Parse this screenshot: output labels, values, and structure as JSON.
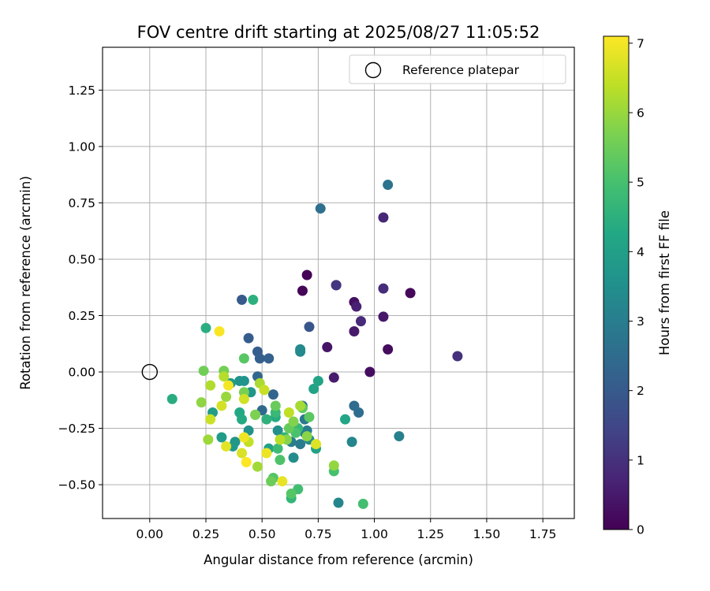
{
  "chart_data": {
    "type": "scatter",
    "title": "FOV centre drift starting at 2025/08/27 11:05:52",
    "xlabel": "Angular distance from reference (arcmin)",
    "ylabel": "Rotation from reference (arcmin)",
    "xlim": [
      -0.21,
      1.89
    ],
    "ylim": [
      -0.65,
      1.44
    ],
    "x_ticks": [
      "0.00",
      "0.25",
      "0.50",
      "0.75",
      "1.00",
      "1.25",
      "1.50",
      "1.75"
    ],
    "x_tick_values": [
      0,
      0.25,
      0.5,
      0.75,
      1.0,
      1.25,
      1.5,
      1.75
    ],
    "y_ticks": [
      "−0.50",
      "−0.25",
      "0.00",
      "0.25",
      "0.50",
      "0.75",
      "1.00",
      "1.25"
    ],
    "y_tick_values": [
      -0.5,
      -0.25,
      0,
      0.25,
      0.5,
      0.75,
      1.0,
      1.25
    ],
    "grid": true,
    "legend": {
      "position": "top-right",
      "entries": [
        "Reference platepar"
      ]
    },
    "reference_point": {
      "x": 0,
      "y": 0,
      "label": "Reference platepar"
    },
    "colorbar": {
      "label": "Hours from first FF file",
      "range": [
        0,
        7.1
      ],
      "ticks": [
        "0",
        "1",
        "2",
        "3",
        "4",
        "5",
        "6",
        "7"
      ],
      "tick_values": [
        0,
        1,
        2,
        3,
        4,
        5,
        6,
        7
      ],
      "colormap": "viridis"
    },
    "points": [
      {
        "x": 0.7,
        "y": 0.43,
        "h": 0.05
      },
      {
        "x": 0.68,
        "y": 0.36,
        "h": 0.1
      },
      {
        "x": 1.16,
        "y": 0.35,
        "h": 0.15
      },
      {
        "x": 1.06,
        "y": 0.1,
        "h": 0.2
      },
      {
        "x": 0.98,
        "y": 0.0,
        "h": 0.25
      },
      {
        "x": 0.91,
        "y": 0.31,
        "h": 0.3
      },
      {
        "x": 0.79,
        "y": 0.11,
        "h": 0.4
      },
      {
        "x": 1.04,
        "y": 0.245,
        "h": 0.45
      },
      {
        "x": 0.91,
        "y": 0.18,
        "h": 0.5
      },
      {
        "x": 0.82,
        "y": -0.025,
        "h": 0.55
      },
      {
        "x": 0.92,
        "y": 0.29,
        "h": 0.65
      },
      {
        "x": 0.83,
        "y": 0.385,
        "h": 0.75
      },
      {
        "x": 1.04,
        "y": 0.685,
        "h": 0.8
      },
      {
        "x": 0.94,
        "y": 0.225,
        "h": 0.85
      },
      {
        "x": 1.04,
        "y": 0.37,
        "h": 0.9
      },
      {
        "x": 1.37,
        "y": 0.07,
        "h": 1.0
      },
      {
        "x": 0.83,
        "y": 0.385,
        "h": 1.1
      },
      {
        "x": 0.71,
        "y": 0.2,
        "h": 1.9
      },
      {
        "x": 0.41,
        "y": 0.32,
        "h": 2.0
      },
      {
        "x": 0.44,
        "y": 0.15,
        "h": 2.05
      },
      {
        "x": 0.48,
        "y": 0.09,
        "h": 2.1
      },
      {
        "x": 0.49,
        "y": 0.06,
        "h": 2.15
      },
      {
        "x": 0.53,
        "y": 0.06,
        "h": 2.2
      },
      {
        "x": 0.55,
        "y": -0.1,
        "h": 2.3
      },
      {
        "x": 0.48,
        "y": -0.02,
        "h": 2.35
      },
      {
        "x": 0.5,
        "y": -0.17,
        "h": 2.4
      },
      {
        "x": 0.91,
        "y": -0.15,
        "h": 2.5
      },
      {
        "x": 0.93,
        "y": -0.18,
        "h": 2.55
      },
      {
        "x": 0.76,
        "y": 0.725,
        "h": 2.6
      },
      {
        "x": 1.06,
        "y": 0.83,
        "h": 2.7
      },
      {
        "x": 0.68,
        "y": -0.15,
        "h": 2.8
      },
      {
        "x": 0.69,
        "y": -0.21,
        "h": 2.85
      },
      {
        "x": 0.69,
        "y": -0.27,
        "h": 2.9
      },
      {
        "x": 0.67,
        "y": -0.32,
        "h": 2.95
      },
      {
        "x": 0.63,
        "y": -0.31,
        "h": 3.0
      },
      {
        "x": 0.7,
        "y": -0.26,
        "h": 3.05
      },
      {
        "x": 1.11,
        "y": -0.285,
        "h": 3.1
      },
      {
        "x": 0.84,
        "y": -0.58,
        "h": 3.2
      },
      {
        "x": 0.9,
        "y": -0.31,
        "h": 3.25
      },
      {
        "x": 0.67,
        "y": 0.09,
        "h": 3.3
      },
      {
        "x": 0.67,
        "y": 0.1,
        "h": 3.35
      },
      {
        "x": 0.71,
        "y": -0.3,
        "h": 3.4
      },
      {
        "x": 0.64,
        "y": -0.38,
        "h": 3.45
      },
      {
        "x": 0.57,
        "y": -0.26,
        "h": 3.5
      },
      {
        "x": 0.44,
        "y": -0.26,
        "h": 3.55
      },
      {
        "x": 0.4,
        "y": -0.04,
        "h": 3.6
      },
      {
        "x": 0.42,
        "y": -0.04,
        "h": 3.65
      },
      {
        "x": 0.45,
        "y": -0.09,
        "h": 3.7
      },
      {
        "x": 0.38,
        "y": -0.31,
        "h": 3.75
      },
      {
        "x": 0.37,
        "y": -0.33,
        "h": 3.8
      },
      {
        "x": 0.36,
        "y": -0.05,
        "h": 3.85
      },
      {
        "x": 0.32,
        "y": -0.29,
        "h": 3.9
      },
      {
        "x": 0.28,
        "y": -0.18,
        "h": 3.95
      },
      {
        "x": 0.53,
        "y": -0.34,
        "h": 4.0
      },
      {
        "x": 0.74,
        "y": -0.34,
        "h": 4.05
      },
      {
        "x": 0.73,
        "y": -0.075,
        "h": 4.1
      },
      {
        "x": 0.75,
        "y": -0.04,
        "h": 4.15
      },
      {
        "x": 0.87,
        "y": -0.21,
        "h": 4.2
      },
      {
        "x": 0.4,
        "y": -0.18,
        "h": 4.25
      },
      {
        "x": 0.41,
        "y": -0.21,
        "h": 4.3
      },
      {
        "x": 0.56,
        "y": -0.2,
        "h": 4.35
      },
      {
        "x": 0.1,
        "y": -0.12,
        "h": 4.4
      },
      {
        "x": 0.25,
        "y": 0.195,
        "h": 4.45
      },
      {
        "x": 0.46,
        "y": 0.32,
        "h": 4.5
      },
      {
        "x": 0.52,
        "y": -0.21,
        "h": 4.55
      },
      {
        "x": 0.6,
        "y": -0.29,
        "h": 4.6
      },
      {
        "x": 0.63,
        "y": -0.56,
        "h": 4.65
      },
      {
        "x": 0.66,
        "y": -0.25,
        "h": 4.7
      },
      {
        "x": 0.56,
        "y": -0.18,
        "h": 4.75
      },
      {
        "x": 0.47,
        "y": -0.19,
        "h": 4.8
      },
      {
        "x": 0.57,
        "y": -0.34,
        "h": 4.85
      },
      {
        "x": 0.66,
        "y": -0.52,
        "h": 4.9
      },
      {
        "x": 0.95,
        "y": -0.585,
        "h": 4.95
      },
      {
        "x": 0.82,
        "y": -0.44,
        "h": 5.0
      },
      {
        "x": 0.65,
        "y": -0.27,
        "h": 5.05
      },
      {
        "x": 0.58,
        "y": -0.39,
        "h": 5.1
      },
      {
        "x": 0.55,
        "y": -0.47,
        "h": 5.15
      },
      {
        "x": 0.63,
        "y": -0.54,
        "h": 5.2
      },
      {
        "x": 0.42,
        "y": 0.06,
        "h": 5.25
      },
      {
        "x": 0.71,
        "y": -0.2,
        "h": 5.3
      },
      {
        "x": 0.68,
        "y": -0.16,
        "h": 5.35
      },
      {
        "x": 0.62,
        "y": -0.25,
        "h": 5.4
      },
      {
        "x": 0.56,
        "y": -0.15,
        "h": 5.45
      },
      {
        "x": 0.54,
        "y": -0.485,
        "h": 5.5
      },
      {
        "x": 0.24,
        "y": 0.005,
        "h": 5.55
      },
      {
        "x": 0.33,
        "y": 0.005,
        "h": 5.6
      },
      {
        "x": 0.42,
        "y": -0.09,
        "h": 5.65
      },
      {
        "x": 0.47,
        "y": -0.19,
        "h": 5.7
      },
      {
        "x": 0.64,
        "y": -0.22,
        "h": 5.75
      },
      {
        "x": 0.61,
        "y": -0.3,
        "h": 5.8
      },
      {
        "x": 0.7,
        "y": -0.285,
        "h": 5.85
      },
      {
        "x": 0.23,
        "y": -0.135,
        "h": 5.9
      },
      {
        "x": 0.82,
        "y": -0.415,
        "h": 5.95
      },
      {
        "x": 0.34,
        "y": -0.11,
        "h": 6.0
      },
      {
        "x": 0.26,
        "y": -0.3,
        "h": 6.05
      },
      {
        "x": 0.48,
        "y": -0.42,
        "h": 6.1
      },
      {
        "x": 0.67,
        "y": -0.15,
        "h": 6.15
      },
      {
        "x": 0.49,
        "y": -0.05,
        "h": 6.2
      },
      {
        "x": 0.27,
        "y": -0.06,
        "h": 6.25
      },
      {
        "x": 0.33,
        "y": -0.02,
        "h": 6.3
      },
      {
        "x": 0.58,
        "y": -0.3,
        "h": 6.35
      },
      {
        "x": 0.62,
        "y": -0.18,
        "h": 6.4
      },
      {
        "x": 0.44,
        "y": -0.31,
        "h": 6.45
      },
      {
        "x": 0.51,
        "y": -0.08,
        "h": 6.5
      },
      {
        "x": 0.27,
        "y": -0.21,
        "h": 6.55
      },
      {
        "x": 0.42,
        "y": -0.12,
        "h": 6.6
      },
      {
        "x": 0.32,
        "y": -0.15,
        "h": 6.65
      },
      {
        "x": 0.41,
        "y": -0.36,
        "h": 6.7
      },
      {
        "x": 0.74,
        "y": -0.32,
        "h": 6.75
      },
      {
        "x": 0.34,
        "y": -0.33,
        "h": 6.8
      },
      {
        "x": 0.59,
        "y": -0.485,
        "h": 6.85
      },
      {
        "x": 0.52,
        "y": -0.36,
        "h": 6.9
      },
      {
        "x": 0.42,
        "y": -0.29,
        "h": 6.95
      },
      {
        "x": 0.35,
        "y": -0.06,
        "h": 7.0
      },
      {
        "x": 0.31,
        "y": 0.18,
        "h": 7.05
      },
      {
        "x": 0.43,
        "y": -0.4,
        "h": 7.1
      }
    ]
  }
}
